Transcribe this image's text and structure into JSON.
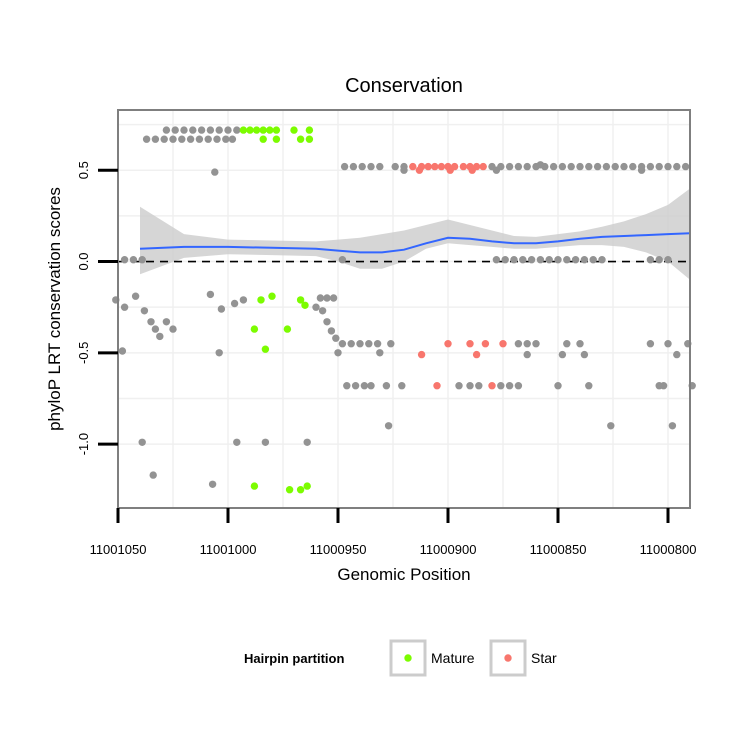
{
  "chart_data": {
    "type": "scatter",
    "title": "Conservation",
    "xlabel": "Genomic Position",
    "ylabel": "phyloP LRT conservation scores",
    "x_reversed": true,
    "xlim": [
      11001050,
      11000790
    ],
    "ylim": [
      -1.35,
      0.83
    ],
    "x_ticks": [
      11001050,
      11001000,
      11000950,
      11000900,
      11000850,
      11000800
    ],
    "y_ticks": [
      -1.0,
      -0.5,
      0.0,
      0.5
    ],
    "y_tick_labels": [
      "-1.0",
      "-0.5",
      "0.0",
      "0.5"
    ],
    "reference_line_y": 0,
    "grid": true,
    "legend": {
      "title": "Hairpin partition",
      "placement": "bottom",
      "items": [
        {
          "label": "Mature",
          "color": "#7CFC00"
        },
        {
          "label": "Star",
          "color": "#F8766D"
        }
      ]
    },
    "colors": {
      "other": "#939393",
      "mature": "#7CFC00",
      "star": "#F8766D",
      "smooth": "#3366FF",
      "ribbon": "#CCCCCC",
      "panel_border": "#7F7F7F",
      "grid": "#F0F0F0"
    },
    "series": [
      {
        "name": "Mature",
        "points": [
          [
            11000993,
            0.72
          ],
          [
            11000990,
            0.72
          ],
          [
            11000987,
            0.72
          ],
          [
            11000984,
            0.72
          ],
          [
            11000981,
            0.72
          ],
          [
            11000978,
            0.72
          ],
          [
            11000970,
            0.72
          ],
          [
            11000963,
            0.72
          ],
          [
            11000984,
            0.67
          ],
          [
            11000978,
            0.67
          ],
          [
            11000967,
            0.67
          ],
          [
            11000963,
            0.67
          ],
          [
            11000985,
            -0.21
          ],
          [
            11000980,
            -0.19
          ],
          [
            11000967,
            -0.21
          ],
          [
            11000965,
            -0.24
          ],
          [
            11000988,
            -0.37
          ],
          [
            11000973,
            -0.37
          ],
          [
            11000983,
            -0.48
          ],
          [
            11000988,
            -1.23
          ],
          [
            11000972,
            -1.25
          ],
          [
            11000967,
            -1.25
          ],
          [
            11000964,
            -1.23
          ]
        ]
      },
      {
        "name": "Star",
        "points": [
          [
            11000916,
            0.52
          ],
          [
            11000912,
            0.52
          ],
          [
            11000909,
            0.52
          ],
          [
            11000906,
            0.52
          ],
          [
            11000903,
            0.52
          ],
          [
            11000900,
            0.52
          ],
          [
            11000897,
            0.52
          ],
          [
            11000893,
            0.52
          ],
          [
            11000890,
            0.52
          ],
          [
            11000887,
            0.52
          ],
          [
            11000884,
            0.52
          ],
          [
            11000913,
            0.5
          ],
          [
            11000899,
            0.5
          ],
          [
            11000889,
            0.5
          ],
          [
            11000900,
            -0.45
          ],
          [
            11000890,
            -0.45
          ],
          [
            11000883,
            -0.45
          ],
          [
            11000875,
            -0.45
          ],
          [
            11000912,
            -0.51
          ],
          [
            11000887,
            -0.51
          ],
          [
            11000905,
            -0.68
          ],
          [
            11000880,
            -0.68
          ]
        ]
      },
      {
        "name": "",
        "points": [
          [
            11001028,
            0.72
          ],
          [
            11001024,
            0.72
          ],
          [
            11001020,
            0.72
          ],
          [
            11001016,
            0.72
          ],
          [
            11001012,
            0.72
          ],
          [
            11001008,
            0.72
          ],
          [
            11001004,
            0.72
          ],
          [
            11001000,
            0.72
          ],
          [
            11000996,
            0.72
          ],
          [
            11001037,
            0.67
          ],
          [
            11001033,
            0.67
          ],
          [
            11001029,
            0.67
          ],
          [
            11001025,
            0.67
          ],
          [
            11001021,
            0.67
          ],
          [
            11001017,
            0.67
          ],
          [
            11001013,
            0.67
          ],
          [
            11001009,
            0.67
          ],
          [
            11001005,
            0.67
          ],
          [
            11001001,
            0.67
          ],
          [
            11000998,
            0.67
          ],
          [
            11001006,
            0.49
          ],
          [
            11000947,
            0.52
          ],
          [
            11000943,
            0.52
          ],
          [
            11000939,
            0.52
          ],
          [
            11000935,
            0.52
          ],
          [
            11000931,
            0.52
          ],
          [
            11000924,
            0.52
          ],
          [
            11000920,
            0.52
          ],
          [
            11000880,
            0.52
          ],
          [
            11000876,
            0.52
          ],
          [
            11000872,
            0.52
          ],
          [
            11000868,
            0.52
          ],
          [
            11000864,
            0.52
          ],
          [
            11000860,
            0.52
          ],
          [
            11000856,
            0.52
          ],
          [
            11000852,
            0.52
          ],
          [
            11000848,
            0.52
          ],
          [
            11000844,
            0.52
          ],
          [
            11000840,
            0.52
          ],
          [
            11000836,
            0.52
          ],
          [
            11000832,
            0.52
          ],
          [
            11000828,
            0.52
          ],
          [
            11000824,
            0.52
          ],
          [
            11000820,
            0.52
          ],
          [
            11000816,
            0.52
          ],
          [
            11000812,
            0.52
          ],
          [
            11000808,
            0.52
          ],
          [
            11000804,
            0.52
          ],
          [
            11000800,
            0.52
          ],
          [
            11000796,
            0.52
          ],
          [
            11000792,
            0.52
          ],
          [
            11000858,
            0.53
          ],
          [
            11000920,
            0.5
          ],
          [
            11000878,
            0.5
          ],
          [
            11000812,
            0.5
          ],
          [
            11001047,
            0.01
          ],
          [
            11001043,
            0.01
          ],
          [
            11001039,
            0.01
          ],
          [
            11000948,
            0.01
          ],
          [
            11000878,
            0.01
          ],
          [
            11000874,
            0.01
          ],
          [
            11000870,
            0.01
          ],
          [
            11000866,
            0.01
          ],
          [
            11000862,
            0.01
          ],
          [
            11000858,
            0.01
          ],
          [
            11000854,
            0.01
          ],
          [
            11000850,
            0.01
          ],
          [
            11000846,
            0.01
          ],
          [
            11000842,
            0.01
          ],
          [
            11000838,
            0.01
          ],
          [
            11000834,
            0.01
          ],
          [
            11000830,
            0.01
          ],
          [
            11000808,
            0.01
          ],
          [
            11000804,
            0.01
          ],
          [
            11000800,
            0.01
          ],
          [
            11001051,
            -0.21
          ],
          [
            11001047,
            -0.25
          ],
          [
            11001042,
            -0.19
          ],
          [
            11001038,
            -0.27
          ],
          [
            11001035,
            -0.33
          ],
          [
            11001033,
            -0.37
          ],
          [
            11001031,
            -0.41
          ],
          [
            11001028,
            -0.33
          ],
          [
            11001025,
            -0.37
          ],
          [
            11001008,
            -0.18
          ],
          [
            11001003,
            -0.26
          ],
          [
            11000997,
            -0.23
          ],
          [
            11000993,
            -0.21
          ],
          [
            11000958,
            -0.2
          ],
          [
            11000955,
            -0.2
          ],
          [
            11000952,
            -0.2
          ],
          [
            11000960,
            -0.25
          ],
          [
            11000957,
            -0.27
          ],
          [
            11000955,
            -0.33
          ],
          [
            11000953,
            -0.38
          ],
          [
            11000951,
            -0.42
          ],
          [
            11001048,
            -0.49
          ],
          [
            11001004,
            -0.5
          ],
          [
            11000948,
            -0.45
          ],
          [
            11000944,
            -0.45
          ],
          [
            11000940,
            -0.45
          ],
          [
            11000936,
            -0.45
          ],
          [
            11000932,
            -0.45
          ],
          [
            11000926,
            -0.45
          ],
          [
            11000868,
            -0.45
          ],
          [
            11000864,
            -0.45
          ],
          [
            11000860,
            -0.45
          ],
          [
            11000846,
            -0.45
          ],
          [
            11000840,
            -0.45
          ],
          [
            11000808,
            -0.45
          ],
          [
            11000800,
            -0.45
          ],
          [
            11000791,
            -0.45
          ],
          [
            11000950,
            -0.5
          ],
          [
            11000931,
            -0.5
          ],
          [
            11000864,
            -0.51
          ],
          [
            11000848,
            -0.51
          ],
          [
            11000838,
            -0.51
          ],
          [
            11000796,
            -0.51
          ],
          [
            11000946,
            -0.68
          ],
          [
            11000942,
            -0.68
          ],
          [
            11000938,
            -0.68
          ],
          [
            11000935,
            -0.68
          ],
          [
            11000928,
            -0.68
          ],
          [
            11000921,
            -0.68
          ],
          [
            11000895,
            -0.68
          ],
          [
            11000890,
            -0.68
          ],
          [
            11000886,
            -0.68
          ],
          [
            11000876,
            -0.68
          ],
          [
            11000872,
            -0.68
          ],
          [
            11000868,
            -0.68
          ],
          [
            11000850,
            -0.68
          ],
          [
            11000836,
            -0.68
          ],
          [
            11000804,
            -0.68
          ],
          [
            11000802,
            -0.68
          ],
          [
            11000789,
            -0.68
          ],
          [
            11000927,
            -0.9
          ],
          [
            11000826,
            -0.9
          ],
          [
            11000798,
            -0.9
          ],
          [
            11001039,
            -0.99
          ],
          [
            11000996,
            -0.99
          ],
          [
            11000983,
            -0.99
          ],
          [
            11000964,
            -0.99
          ],
          [
            11001034,
            -1.17
          ],
          [
            11001007,
            -1.22
          ]
        ]
      }
    ],
    "smooth_line": {
      "x": [
        11001040,
        11001020,
        11001000,
        11000980,
        11000960,
        11000950,
        11000940,
        11000930,
        11000920,
        11000910,
        11000900,
        11000890,
        11000880,
        11000870,
        11000860,
        11000850,
        11000840,
        11000830,
        11000820,
        11000810,
        11000800,
        11000790
      ],
      "y": [
        0.07,
        0.08,
        0.08,
        0.075,
        0.07,
        0.06,
        0.05,
        0.05,
        0.065,
        0.1,
        0.13,
        0.125,
        0.11,
        0.1,
        0.1,
        0.11,
        0.125,
        0.135,
        0.14,
        0.145,
        0.15,
        0.155
      ],
      "lower": [
        -0.07,
        0.02,
        0.04,
        0.035,
        0.03,
        0.0,
        -0.04,
        -0.04,
        0.0,
        0.07,
        0.1,
        0.09,
        0.08,
        0.07,
        0.07,
        0.08,
        0.09,
        0.09,
        0.08,
        0.05,
        0.0,
        -0.1
      ],
      "upper": [
        0.3,
        0.15,
        0.12,
        0.115,
        0.11,
        0.12,
        0.13,
        0.15,
        0.17,
        0.2,
        0.23,
        0.2,
        0.17,
        0.14,
        0.135,
        0.15,
        0.165,
        0.19,
        0.22,
        0.26,
        0.31,
        0.4
      ]
    }
  }
}
